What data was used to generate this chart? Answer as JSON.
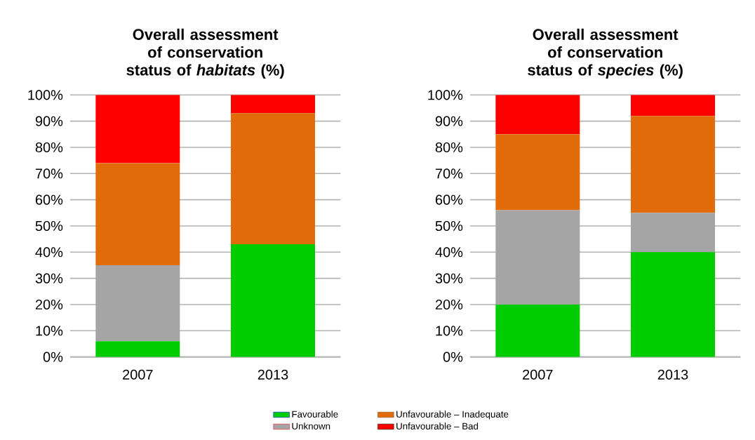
{
  "chart_data": [
    {
      "type": "bar",
      "stacked": true,
      "title": "Overall assessment of conservation status of *habitats* (%)",
      "categories": [
        "2007",
        "2013"
      ],
      "series": [
        {
          "name": "Favourable",
          "color": "#00cc00",
          "values": [
            6,
            43
          ]
        },
        {
          "name": "Unknown",
          "color": "#a5a5a5",
          "values": [
            29,
            0
          ]
        },
        {
          "name": "Unfavourable – Inadequate",
          "color": "#e26b0a",
          "values": [
            39,
            50
          ]
        },
        {
          "name": "Unfavourable – Bad",
          "color": "#ff0000",
          "values": [
            26,
            7
          ]
        }
      ],
      "ylim": [
        0,
        100
      ],
      "yticks": [
        {
          "value": 0,
          "label": "0%"
        },
        {
          "value": 10,
          "label": "10%"
        },
        {
          "value": 20,
          "label": "20%"
        },
        {
          "value": 30,
          "label": "30%"
        },
        {
          "value": 40,
          "label": "40%"
        },
        {
          "value": 50,
          "label": "50%"
        },
        {
          "value": 60,
          "label": "60%"
        },
        {
          "value": 70,
          "label": "70%"
        },
        {
          "value": 80,
          "label": "80%"
        },
        {
          "value": 90,
          "label": "90%"
        },
        {
          "value": 100,
          "label": "100%"
        }
      ],
      "grid": "y",
      "legend": "bottom"
    },
    {
      "type": "bar",
      "stacked": true,
      "title": "Overall assessment of conservation status of *species* (%)",
      "categories": [
        "2007",
        "2013"
      ],
      "series": [
        {
          "color": "#00cc00",
          "values": [
            20,
            40
          ]
        },
        {
          "color": "#a5a5a5",
          "values": [
            36,
            15
          ]
        },
        {
          "color": "#e26b0a",
          "values": [
            29,
            37
          ]
        },
        {
          "color": "#ff0000",
          "values": [
            15,
            8
          ]
        }
      ],
      "ylim": [
        0,
        100
      ],
      "yticks": [
        {
          "value": 0,
          "label": "0%"
        },
        {
          "value": 10,
          "label": "10%"
        },
        {
          "value": 20,
          "label": "20%"
        },
        {
          "value": 30,
          "label": "30%"
        },
        {
          "value": 40,
          "label": "40%"
        },
        {
          "value": 50,
          "label": "50%"
        },
        {
          "value": 60,
          "label": "60%"
        },
        {
          "value": 70,
          "label": "70%"
        },
        {
          "value": 80,
          "label": "80%"
        },
        {
          "value": 90,
          "label": "90%"
        },
        {
          "value": 100,
          "label": "100%"
        }
      ],
      "grid": "y"
    }
  ]
}
